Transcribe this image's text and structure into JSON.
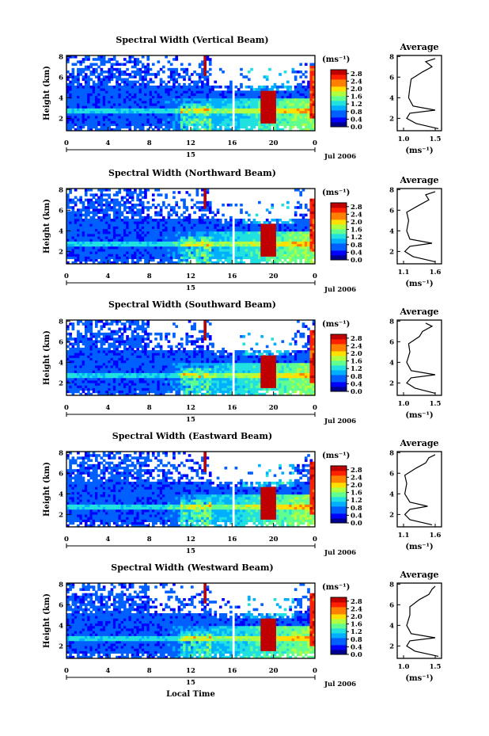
{
  "figure": {
    "xlabel": "Local Time",
    "date_label": "Jul 2006",
    "day_label": "15",
    "colorbar_unit": "(ms⁻¹)",
    "avg_title": "Average",
    "avg_xunit": "(ms⁻¹)"
  },
  "chart_data": [
    {
      "type": "heatmap",
      "title": "Spectral Width (Vertical Beam)",
      "ylabel": "Height (km)",
      "xlabel": "",
      "x_ticks": [
        "0",
        "4",
        "8",
        "12",
        "16",
        "20",
        "0"
      ],
      "xlim": [
        0,
        24
      ],
      "y_ticks": [
        "2",
        "4",
        "6",
        "8"
      ],
      "ylim": [
        0.8,
        8.1
      ],
      "colorbar": {
        "ticks": [
          "0.0",
          "0.4",
          "0.8",
          "1.2",
          "1.6",
          "2.0",
          "2.4",
          "2.8"
        ],
        "range": [
          0.0,
          3.0
        ]
      },
      "average_profile": {
        "x_ticks": [
          "1.0",
          "1.5"
        ],
        "xlim": [
          0.9,
          1.6
        ],
        "y_ticks": [
          "2",
          "4",
          "6",
          "8"
        ],
        "heights": [
          1.0,
          1.5,
          2.0,
          2.5,
          2.8,
          3.2,
          4.0,
          5.0,
          5.8,
          6.5,
          7.0,
          7.5,
          7.8
        ],
        "values": [
          1.55,
          1.2,
          1.05,
          1.1,
          1.5,
          1.15,
          1.08,
          1.1,
          1.12,
          1.3,
          1.45,
          1.35,
          1.5
        ]
      }
    },
    {
      "type": "heatmap",
      "title": "Spectral Width (Northward Beam)",
      "ylabel": "Height (km)",
      "xlabel": "",
      "x_ticks": [
        "0",
        "4",
        "8",
        "12",
        "16",
        "20",
        "0"
      ],
      "xlim": [
        0,
        24
      ],
      "y_ticks": [
        "2",
        "4",
        "6",
        "8"
      ],
      "ylim": [
        0.8,
        8.1
      ],
      "colorbar": {
        "ticks": [
          "0.0",
          "0.4",
          "0.8",
          "1.2",
          "1.6",
          "2.0",
          "2.4",
          "2.8"
        ],
        "range": [
          0.0,
          3.0
        ]
      },
      "average_profile": {
        "x_ticks": [
          "1.1",
          "1.6"
        ],
        "xlim": [
          1.0,
          1.7
        ],
        "y_ticks": [
          "2",
          "4",
          "6",
          "8"
        ],
        "heights": [
          1.0,
          1.5,
          2.0,
          2.5,
          2.8,
          3.2,
          4.0,
          5.0,
          5.8,
          6.5,
          7.0,
          7.5,
          7.8
        ],
        "values": [
          1.6,
          1.25,
          1.12,
          1.2,
          1.55,
          1.2,
          1.15,
          1.18,
          1.15,
          1.35,
          1.5,
          1.45,
          1.6
        ]
      }
    },
    {
      "type": "heatmap",
      "title": "Spectral Width (Southward Beam)",
      "ylabel": "Height (km)",
      "xlabel": "",
      "x_ticks": [
        "0",
        "4",
        "8",
        "12",
        "16",
        "20",
        "0"
      ],
      "xlim": [
        0,
        24
      ],
      "y_ticks": [
        "2",
        "4",
        "6",
        "8"
      ],
      "ylim": [
        0.8,
        8.1
      ],
      "colorbar": {
        "ticks": [
          "0.0",
          "0.4",
          "0.8",
          "1.2",
          "1.6",
          "2.0",
          "2.4",
          "2.8"
        ],
        "range": [
          0.0,
          3.0
        ]
      },
      "average_profile": {
        "x_ticks": [
          "1.0",
          "1.5"
        ],
        "xlim": [
          0.9,
          1.6
        ],
        "y_ticks": [
          "2",
          "4",
          "6",
          "8"
        ],
        "heights": [
          1.0,
          1.5,
          2.0,
          2.5,
          2.8,
          3.2,
          4.0,
          5.0,
          5.8,
          6.5,
          7.0,
          7.5,
          7.8
        ],
        "values": [
          1.5,
          1.18,
          1.05,
          1.12,
          1.5,
          1.12,
          1.05,
          1.1,
          1.08,
          1.25,
          1.3,
          1.45,
          1.35
        ]
      }
    },
    {
      "type": "heatmap",
      "title": "Spectral Width (Eastward Beam)",
      "ylabel": "Height (km)",
      "xlabel": "",
      "x_ticks": [
        "0",
        "4",
        "8",
        "12",
        "16",
        "20",
        "0"
      ],
      "xlim": [
        0,
        24
      ],
      "y_ticks": [
        "2",
        "4",
        "6",
        "8"
      ],
      "ylim": [
        0.8,
        8.1
      ],
      "colorbar": {
        "ticks": [
          "0.0",
          "0.4",
          "0.8",
          "1.2",
          "1.6",
          "2.0",
          "2.4",
          "2.8"
        ],
        "range": [
          0.0,
          3.0
        ]
      },
      "average_profile": {
        "x_ticks": [
          "1.1",
          "1.6"
        ],
        "xlim": [
          1.0,
          1.7
        ],
        "y_ticks": [
          "2",
          "4",
          "6",
          "8"
        ],
        "heights": [
          1.0,
          1.5,
          2.0,
          2.5,
          2.8,
          3.2,
          4.0,
          5.0,
          5.8,
          6.5,
          7.0,
          7.5,
          7.8
        ],
        "values": [
          1.55,
          1.2,
          1.12,
          1.2,
          1.48,
          1.2,
          1.12,
          1.15,
          1.12,
          1.3,
          1.45,
          1.5,
          1.6
        ]
      }
    },
    {
      "type": "heatmap",
      "title": "Spectral Width (Westward Beam)",
      "ylabel": "Height (km)",
      "xlabel": "Local Time",
      "x_ticks": [
        "0",
        "4",
        "8",
        "12",
        "16",
        "20",
        "0"
      ],
      "xlim": [
        0,
        24
      ],
      "y_ticks": [
        "2",
        "4",
        "6",
        "8"
      ],
      "ylim": [
        0.8,
        8.1
      ],
      "colorbar": {
        "ticks": [
          "0.0",
          "0.4",
          "0.8",
          "1.2",
          "1.6",
          "2.0",
          "2.4",
          "2.8"
        ],
        "range": [
          0.0,
          3.0
        ]
      },
      "average_profile": {
        "x_ticks": [
          "1.0",
          "1.5"
        ],
        "xlim": [
          0.9,
          1.6
        ],
        "y_ticks": [
          "2",
          "4",
          "6",
          "8"
        ],
        "heights": [
          1.0,
          1.5,
          2.0,
          2.5,
          2.8,
          3.2,
          4.0,
          5.0,
          5.8,
          6.5,
          7.0,
          7.5,
          7.8
        ],
        "values": [
          1.55,
          1.18,
          1.05,
          1.1,
          1.5,
          1.12,
          1.05,
          1.1,
          1.1,
          1.25,
          1.4,
          1.45,
          1.5
        ]
      }
    }
  ],
  "colors": {
    "colormap": [
      "#000090",
      "#0000ff",
      "#0060ff",
      "#00b0ff",
      "#20e0e0",
      "#60ff90",
      "#b0ff40",
      "#ffe000",
      "#ff8000",
      "#ff2000",
      "#c00000"
    ],
    "missing": "#ffffff",
    "axis": "#000000",
    "profile_line": "#000000"
  }
}
